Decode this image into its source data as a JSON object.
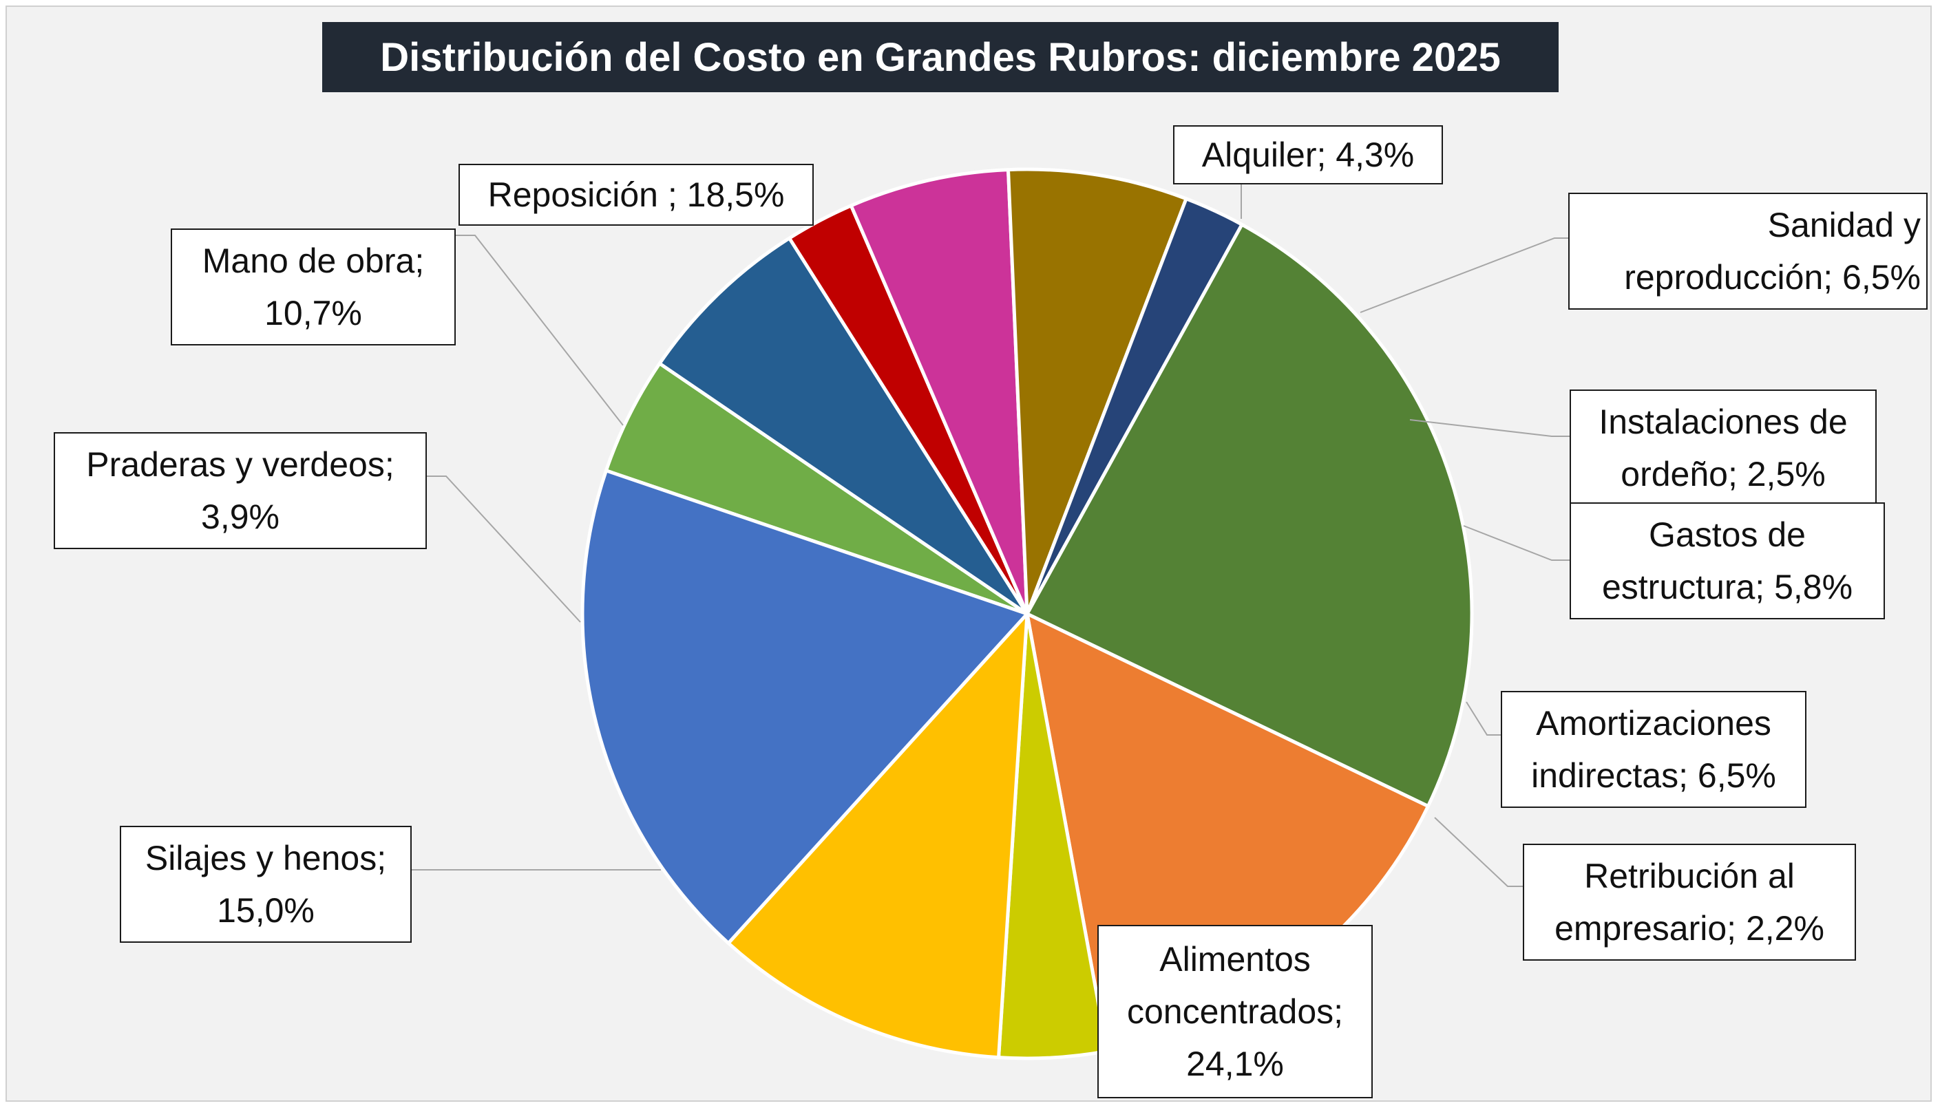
{
  "chart_data": {
    "type": "pie",
    "title": "Distribución del Costo en Grandes Rubros: diciembre 2025",
    "slices": [
      {
        "name": "Alquiler",
        "value": 4.3,
        "text": [
          "Alquiler; 4,3%"
        ],
        "color": "#70ad47"
      },
      {
        "name": "Sanidad y reproducción",
        "value": 6.5,
        "text": [
          "Sanidad y",
          "reproducción; 6,5%"
        ],
        "color": "#255e91"
      },
      {
        "name": "Instalaciones de ordeño",
        "value": 2.5,
        "text": [
          "Instalaciones de",
          "ordeño; 2,5%"
        ],
        "color": "#c00000"
      },
      {
        "name": "Gastos de estructura",
        "value": 5.8,
        "text": [
          "Gastos de",
          "estructura; 5,8%"
        ],
        "color": "#cc3399"
      },
      {
        "name": "Amortizaciones indirectas",
        "value": 6.5,
        "text": [
          "Amortizaciones",
          "indirectas; 6,5%"
        ],
        "color": "#997300"
      },
      {
        "name": "Retribución al empresario",
        "value": 2.2,
        "text": [
          "Retribución al",
          "empresario; 2,2%"
        ],
        "color": "#264478"
      },
      {
        "name": "Alimentos concentrados",
        "value": 24.1,
        "text": [
          "Alimentos",
          "concentrados;",
          "24,1%"
        ],
        "color": "#548235"
      },
      {
        "name": "Silajes y henos",
        "value": 15.0,
        "text": [
          "Silajes y henos;",
          "15,0%"
        ],
        "color": "#ed7d31"
      },
      {
        "name": "Praderas y verdeos",
        "value": 3.9,
        "text": [
          "Praderas y verdeos;",
          "3,9%"
        ],
        "color": "#cccc00"
      },
      {
        "name": "Mano de obra",
        "value": 10.7,
        "text": [
          "Mano de obra;",
          "10,7%"
        ],
        "color": "#ffc000"
      },
      {
        "name": "Reposición",
        "value": 18.5,
        "text": [
          "Reposición ; 18,5%"
        ],
        "color": "#4472c4"
      }
    ]
  }
}
